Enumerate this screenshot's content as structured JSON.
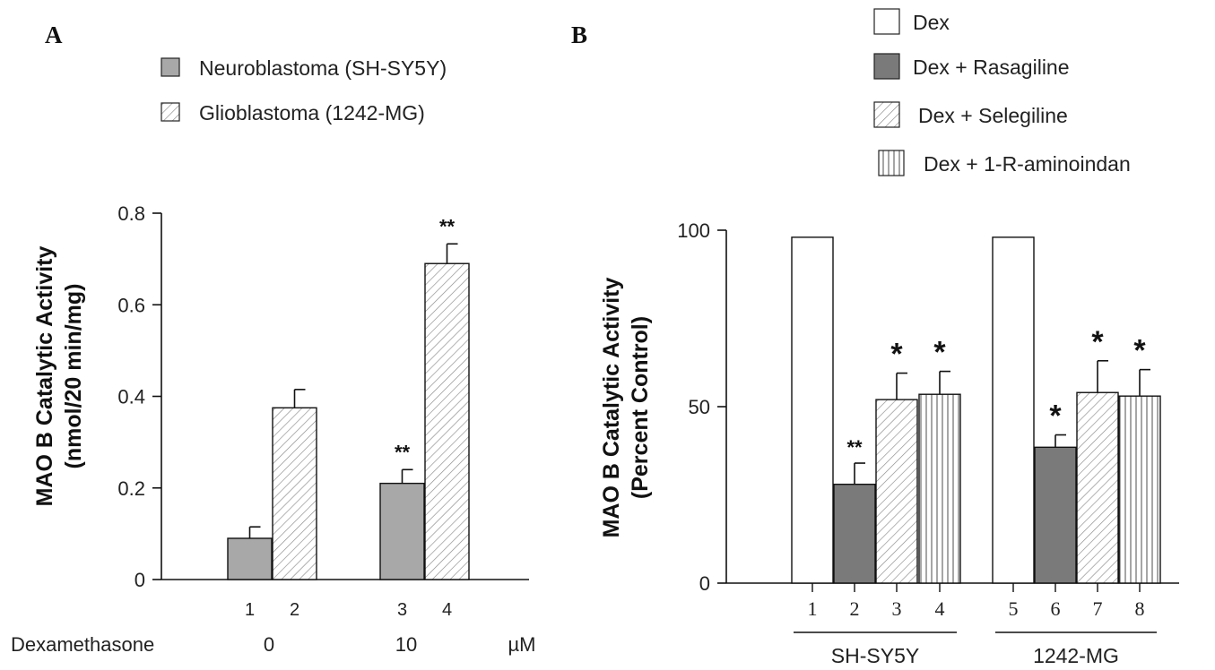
{
  "panels": [
    {
      "letter": "A",
      "chart_data": {
        "type": "bar",
        "ylabel": [
          "MAO B Catalytic Activity",
          "(nmol/20 min/mg)"
        ],
        "ylim": [
          0,
          0.8
        ],
        "yticks": [
          {
            "value": 0,
            "label": "0"
          },
          {
            "value": 0.2,
            "label": "0.2"
          },
          {
            "value": 0.4,
            "label": "0.4"
          },
          {
            "value": 0.6,
            "label": "0.6"
          },
          {
            "value": 0.8,
            "label": "0.8"
          }
        ],
        "series": [
          {
            "name": "Neuroblastoma (SH-SY5Y)",
            "fill": "#a8a8a8",
            "pattern": "solid"
          },
          {
            "name": "Glioblastoma (1242-MG)",
            "fill": "#ffffff",
            "pattern": "diagonal"
          }
        ],
        "bars": [
          {
            "label": "1",
            "series": 0,
            "value": 0.09,
            "err": 0.025,
            "sig": ""
          },
          {
            "label": "2",
            "series": 1,
            "value": 0.375,
            "err": 0.04,
            "sig": ""
          },
          {
            "label": "3",
            "series": 0,
            "value": 0.21,
            "err": 0.03,
            "sig": "**"
          },
          {
            "label": "4",
            "series": 1,
            "value": 0.69,
            "err": 0.043,
            "sig": "**"
          }
        ],
        "condition_label": "Dexamethasone",
        "conditions": [
          "0",
          "10"
        ],
        "unit": "µM",
        "grid": false,
        "legend": "top-center"
      }
    },
    {
      "letter": "B",
      "chart_data": {
        "type": "bar",
        "ylabel": [
          "MAO B Catalytic Activity",
          "(Percent Control)"
        ],
        "ylim": [
          0,
          100
        ],
        "yticks": [
          {
            "value": 0,
            "label": "0"
          },
          {
            "value": 50,
            "label": "50"
          },
          {
            "value": 100,
            "label": "100"
          }
        ],
        "series": [
          {
            "name": "Dex",
            "fill": "#ffffff",
            "pattern": "solid"
          },
          {
            "name": "Dex + Rasagiline",
            "fill": "#7a7a7a",
            "pattern": "solid"
          },
          {
            "name": "Dex + Selegiline",
            "fill": "#ffffff",
            "pattern": "diagonal"
          },
          {
            "name": "Dex + 1-R-aminoindan",
            "fill": "#ffffff",
            "pattern": "vertical"
          }
        ],
        "bars": [
          {
            "label": "1",
            "series": 0,
            "value": 98,
            "err": 0,
            "sig": ""
          },
          {
            "label": "2",
            "series": 1,
            "value": 28,
            "err": 6,
            "sig": "**"
          },
          {
            "label": "3",
            "series": 2,
            "value": 52,
            "err": 7.5,
            "sig": "*"
          },
          {
            "label": "4",
            "series": 3,
            "value": 53.5,
            "err": 6.5,
            "sig": "*"
          },
          {
            "label": "5",
            "series": 0,
            "value": 98,
            "err": 0,
            "sig": ""
          },
          {
            "label": "6",
            "series": 1,
            "value": 38.5,
            "err": 3.5,
            "sig": "*"
          },
          {
            "label": "7",
            "series": 2,
            "value": 54,
            "err": 9,
            "sig": "*"
          },
          {
            "label": "8",
            "series": 3,
            "value": 53,
            "err": 7.5,
            "sig": "*"
          }
        ],
        "groups": [
          "SH-SY5Y",
          "1242-MG"
        ],
        "grid": false,
        "legend": "top-right"
      }
    }
  ]
}
